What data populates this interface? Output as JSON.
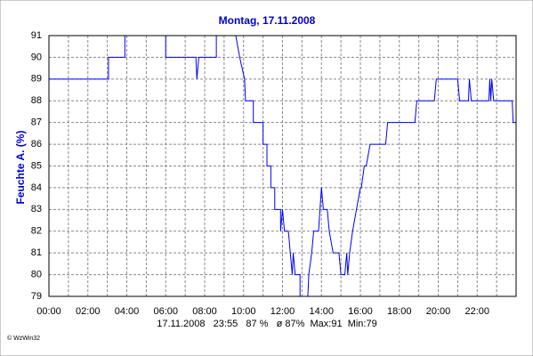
{
  "chart_data": {
    "type": "line",
    "title": "Montag, 17.11.2008",
    "y_label": "Feuchte A. (%)",
    "footer": "17.11.2008   23:55   87 %   ø 87%  Max:91  Min:79",
    "copyright": "© WzWin32",
    "xlim": [
      0,
      24
    ],
    "ylim": [
      79,
      91
    ],
    "xticks": [
      {
        "value": 0,
        "label": "00:00"
      },
      {
        "value": 2,
        "label": "02:00"
      },
      {
        "value": 4,
        "label": "04:00"
      },
      {
        "value": 6,
        "label": "06:00"
      },
      {
        "value": 8,
        "label": "08:00"
      },
      {
        "value": 10,
        "label": "10:00"
      },
      {
        "value": 12,
        "label": "12:00"
      },
      {
        "value": 14,
        "label": "14:00"
      },
      {
        "value": 16,
        "label": "16:00"
      },
      {
        "value": 18,
        "label": "18:00"
      },
      {
        "value": 20,
        "label": "20:00"
      },
      {
        "value": 22,
        "label": "22:00"
      }
    ],
    "minor_xticks": [
      1,
      3,
      5,
      7,
      9,
      11,
      13,
      15,
      17,
      19,
      21,
      23
    ],
    "yticks": [
      79,
      80,
      81,
      82,
      83,
      84,
      85,
      86,
      87,
      88,
      89,
      90,
      91
    ],
    "grid": true,
    "color": "#0000ff",
    "x": [
      0,
      3.06,
      3.06,
      3.9,
      3.9,
      6.0,
      6.0,
      7.55,
      7.6,
      7.7,
      8.6,
      8.6,
      9.6,
      9.8,
      10.05,
      10.1,
      10.5,
      10.5,
      11.0,
      11.0,
      11.2,
      11.2,
      11.4,
      11.4,
      11.6,
      11.6,
      11.9,
      11.9,
      12.0,
      12.1,
      12.3,
      12.5,
      12.55,
      12.65,
      12.9,
      12.9,
      13.3,
      13.35,
      13.5,
      13.6,
      13.85,
      14.0,
      14.1,
      14.3,
      14.4,
      14.6,
      14.9,
      15.0,
      15.2,
      15.3,
      15.35,
      15.45,
      15.6,
      15.8,
      16.0,
      16.05,
      16.2,
      16.3,
      16.5,
      17.3,
      17.4,
      18.8,
      18.9,
      19.8,
      19.9,
      21.0,
      21.1,
      21.55,
      21.6,
      21.7,
      22.6,
      22.65,
      22.7,
      22.75,
      22.85,
      23.8,
      23.85,
      24.0
    ],
    "values": [
      89,
      89,
      90,
      90,
      91,
      91,
      90,
      90,
      89,
      90,
      90,
      91,
      91,
      90,
      89,
      88,
      88,
      87,
      87,
      86,
      86,
      85,
      85,
      84,
      84,
      83,
      83,
      82,
      83,
      82,
      82,
      80,
      81,
      80,
      80,
      79,
      79,
      80,
      81,
      82,
      82,
      84,
      83,
      83,
      82,
      81,
      81,
      80,
      80,
      81,
      80,
      81,
      82,
      83,
      84,
      84,
      85,
      85,
      86,
      86,
      87,
      87,
      88,
      88,
      89,
      89,
      88,
      88,
      89,
      88,
      88,
      89,
      88,
      89,
      88,
      88,
      87,
      87
    ]
  }
}
